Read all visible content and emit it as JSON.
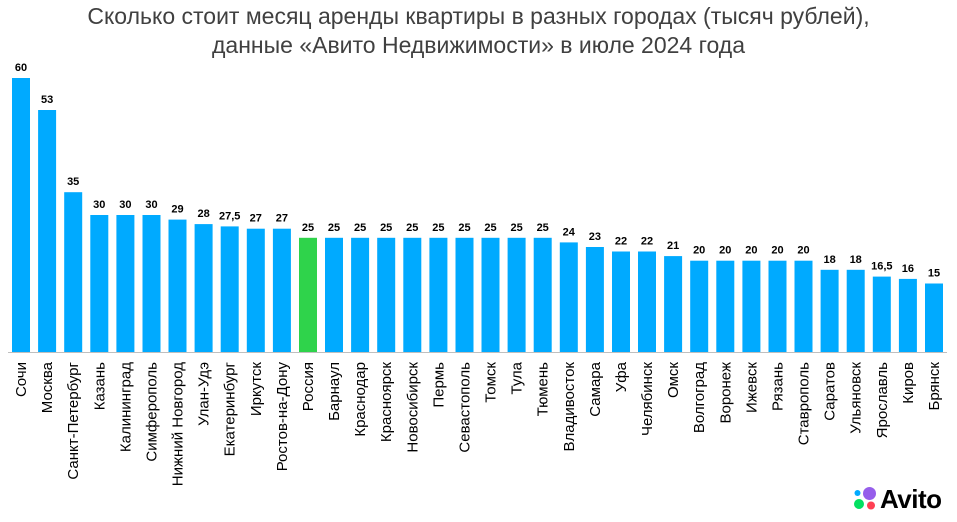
{
  "title_line1": "Сколько стоит месяц аренды квартиры в разных городах (тысяч рублей),",
  "title_line2": "данные «Авито Недвижимости» в июле 2024 года",
  "brand": {
    "name": "Avito"
  },
  "colors": {
    "bar": "#00AAFF",
    "highlight": "#2FD34B",
    "text": "#000000",
    "axis": "#BFBFBF"
  },
  "chart_data": {
    "type": "bar",
    "title": "Сколько стоит месяц аренды квартиры в разных городах (тысяч рублей), данные «Авито Недвижимости» в июле 2024 года",
    "xlabel": "",
    "ylabel": "",
    "ylim": [
      0,
      60
    ],
    "highlight_category": "Россия",
    "categories": [
      "Сочи",
      "Москва",
      "Санкт-Петербург",
      "Казань",
      "Калининград",
      "Симферополь",
      "Нижний Новгород",
      "Улан-Удэ",
      "Екатеринбург",
      "Иркутск",
      "Ростов-на-Дону",
      "Россия",
      "Барнаул",
      "Краснодар",
      "Красноярск",
      "Новосибирск",
      "Пермь",
      "Севастополь",
      "Томск",
      "Тула",
      "Тюмень",
      "Владивосток",
      "Самара",
      "Уфа",
      "Челябинск",
      "Омск",
      "Волгоград",
      "Воронеж",
      "Ижевск",
      "Рязань",
      "Ставрополь",
      "Саратов",
      "Ульяновск",
      "Ярославль",
      "Киров",
      "Брянск"
    ],
    "values": [
      60,
      53,
      35,
      30,
      30,
      30,
      29,
      28,
      27.5,
      27,
      27,
      25,
      25,
      25,
      25,
      25,
      25,
      25,
      25,
      25,
      25,
      24,
      23,
      22,
      22,
      21,
      20,
      20,
      20,
      20,
      20,
      18,
      18,
      16.5,
      16,
      15
    ],
    "value_labels": [
      "60",
      "53",
      "35",
      "30",
      "30",
      "30",
      "29",
      "28",
      "27,5",
      "27",
      "27",
      "25",
      "25",
      "25",
      "25",
      "25",
      "25",
      "25",
      "25",
      "25",
      "25",
      "24",
      "23",
      "22",
      "22",
      "21",
      "20",
      "20",
      "20",
      "20",
      "20",
      "18",
      "18",
      "16,5",
      "16",
      "15"
    ]
  }
}
